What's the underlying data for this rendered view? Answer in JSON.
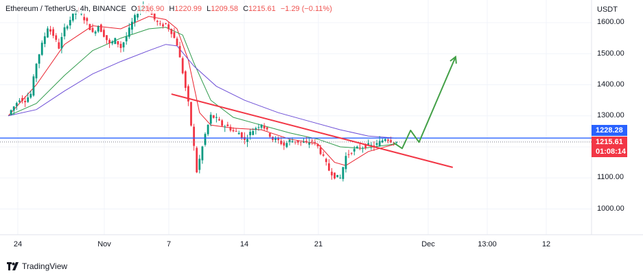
{
  "header": {
    "symbol": "Ethereum / TetherUS, 4h, BINANCE",
    "open_label": "O",
    "open": "1216.90",
    "high_label": "H",
    "high": "1220.99",
    "low_label": "L",
    "low": "1209.58",
    "close_label": "C",
    "close": "1215.61",
    "change": "−1.29 (−0.11%)"
  },
  "axis": {
    "currency": "USDT",
    "y_ticks": [
      "1600.00",
      "1500.00",
      "1400.00",
      "1300.00",
      "1100.00",
      "1000.00"
    ],
    "x_ticks": [
      "24",
      "Nov",
      "7",
      "14",
      "21",
      "Dec",
      "13:00",
      "12"
    ]
  },
  "price_tags": {
    "level": "1228.28",
    "last_price": "1215.61",
    "countdown": "01:08:14"
  },
  "branding": {
    "name": "TradingView",
    "icon": "tradingview-logo-icon"
  },
  "colors": {
    "up": "#089981",
    "down": "#f23645",
    "level_line": "#2962ff",
    "trendline": "#f23645",
    "projection": "#43a047",
    "ema_fast": "#e91e2a",
    "ema_mid": "#2e9a4b",
    "ema_slow": "#6c4dd6",
    "grid": "#f0f3fa"
  },
  "chart_data": {
    "type": "line",
    "title": "Ethereum / TetherUS, 4h, BINANCE",
    "xlabel": "",
    "ylabel": "USDT",
    "ylim": [
      920,
      1700
    ],
    "x_axis": [
      "Oct 24",
      "Nov",
      "Nov 7",
      "Nov 14",
      "Nov 21",
      "Dec"
    ],
    "grid": true,
    "series": [
      {
        "price_path": [
          [
            0,
            1305
          ],
          [
            2,
            1330
          ],
          [
            4,
            1355
          ],
          [
            6,
            1350
          ],
          [
            8,
            1370
          ],
          [
            10,
            1470
          ],
          [
            12,
            1530
          ],
          [
            14,
            1585
          ],
          [
            16,
            1560
          ],
          [
            18,
            1520
          ],
          [
            20,
            1580
          ],
          [
            22,
            1610
          ],
          [
            24,
            1640
          ],
          [
            26,
            1625
          ],
          [
            28,
            1600
          ],
          [
            30,
            1565
          ],
          [
            32,
            1590
          ],
          [
            34,
            1560
          ],
          [
            36,
            1530
          ],
          [
            38,
            1545
          ],
          [
            40,
            1520
          ],
          [
            42,
            1555
          ],
          [
            44,
            1600
          ],
          [
            46,
            1635
          ],
          [
            48,
            1655
          ],
          [
            50,
            1640
          ],
          [
            52,
            1610
          ],
          [
            54,
            1590
          ],
          [
            56,
            1595
          ],
          [
            58,
            1570
          ],
          [
            60,
            1530
          ],
          [
            62,
            1440
          ],
          [
            64,
            1340
          ],
          [
            66,
            1200
          ],
          [
            67,
            1120
          ],
          [
            68,
            1160
          ],
          [
            70,
            1240
          ],
          [
            72,
            1300
          ],
          [
            74,
            1290
          ],
          [
            76,
            1270
          ],
          [
            78,
            1265
          ],
          [
            80,
            1250
          ],
          [
            82,
            1245
          ],
          [
            84,
            1220
          ],
          [
            86,
            1245
          ],
          [
            88,
            1262
          ],
          [
            90,
            1275
          ],
          [
            92,
            1250
          ],
          [
            94,
            1225
          ],
          [
            96,
            1220
          ],
          [
            98,
            1205
          ],
          [
            100,
            1220
          ],
          [
            102,
            1218
          ],
          [
            104,
            1215
          ],
          [
            106,
            1210
          ],
          [
            108,
            1220
          ],
          [
            110,
            1200
          ],
          [
            112,
            1165
          ],
          [
            114,
            1125
          ],
          [
            116,
            1105
          ],
          [
            118,
            1100
          ],
          [
            120,
            1170
          ],
          [
            122,
            1185
          ],
          [
            124,
            1195
          ],
          [
            126,
            1200
          ],
          [
            128,
            1205
          ],
          [
            130,
            1202
          ],
          [
            132,
            1215
          ],
          [
            134,
            1228
          ],
          [
            136,
            1220
          ],
          [
            138,
            1215.61
          ]
        ]
      },
      {
        "ema_fast": [
          [
            0,
            1300
          ],
          [
            10,
            1400
          ],
          [
            20,
            1530
          ],
          [
            30,
            1590
          ],
          [
            40,
            1580
          ],
          [
            50,
            1620
          ],
          [
            56,
            1610
          ],
          [
            60,
            1580
          ],
          [
            64,
            1480
          ],
          [
            68,
            1310
          ],
          [
            72,
            1270
          ],
          [
            80,
            1260
          ],
          [
            90,
            1255
          ],
          [
            100,
            1225
          ],
          [
            110,
            1210
          ],
          [
            116,
            1150
          ],
          [
            120,
            1140
          ],
          [
            128,
            1185
          ],
          [
            138,
            1210
          ]
        ]
      },
      {
        "ema_mid": [
          [
            0,
            1300
          ],
          [
            10,
            1340
          ],
          [
            20,
            1430
          ],
          [
            30,
            1510
          ],
          [
            40,
            1550
          ],
          [
            50,
            1580
          ],
          [
            56,
            1585
          ],
          [
            62,
            1560
          ],
          [
            66,
            1470
          ],
          [
            72,
            1350
          ],
          [
            80,
            1295
          ],
          [
            90,
            1270
          ],
          [
            100,
            1245
          ],
          [
            110,
            1225
          ],
          [
            118,
            1200
          ],
          [
            126,
            1195
          ],
          [
            138,
            1210
          ]
        ]
      },
      {
        "ema_slow": [
          [
            0,
            1300
          ],
          [
            10,
            1320
          ],
          [
            20,
            1380
          ],
          [
            30,
            1435
          ],
          [
            40,
            1475
          ],
          [
            50,
            1510
          ],
          [
            56,
            1530
          ],
          [
            60,
            1525
          ],
          [
            66,
            1460
          ],
          [
            74,
            1395
          ],
          [
            84,
            1350
          ],
          [
            96,
            1310
          ],
          [
            108,
            1280
          ],
          [
            118,
            1255
          ],
          [
            128,
            1235
          ],
          [
            138,
            1228
          ]
        ]
      }
    ],
    "drawings": [
      {
        "kind": "horizontal-level",
        "value": 1228.28
      },
      {
        "kind": "trendline",
        "points": [
          [
            58,
            1370
          ],
          [
            158,
            1134
          ]
        ]
      },
      {
        "kind": "projection-path",
        "points": [
          [
            137,
            1213
          ],
          [
            140,
            1195
          ],
          [
            143,
            1253
          ],
          [
            146,
            1215
          ],
          [
            159,
            1490
          ]
        ]
      }
    ]
  }
}
